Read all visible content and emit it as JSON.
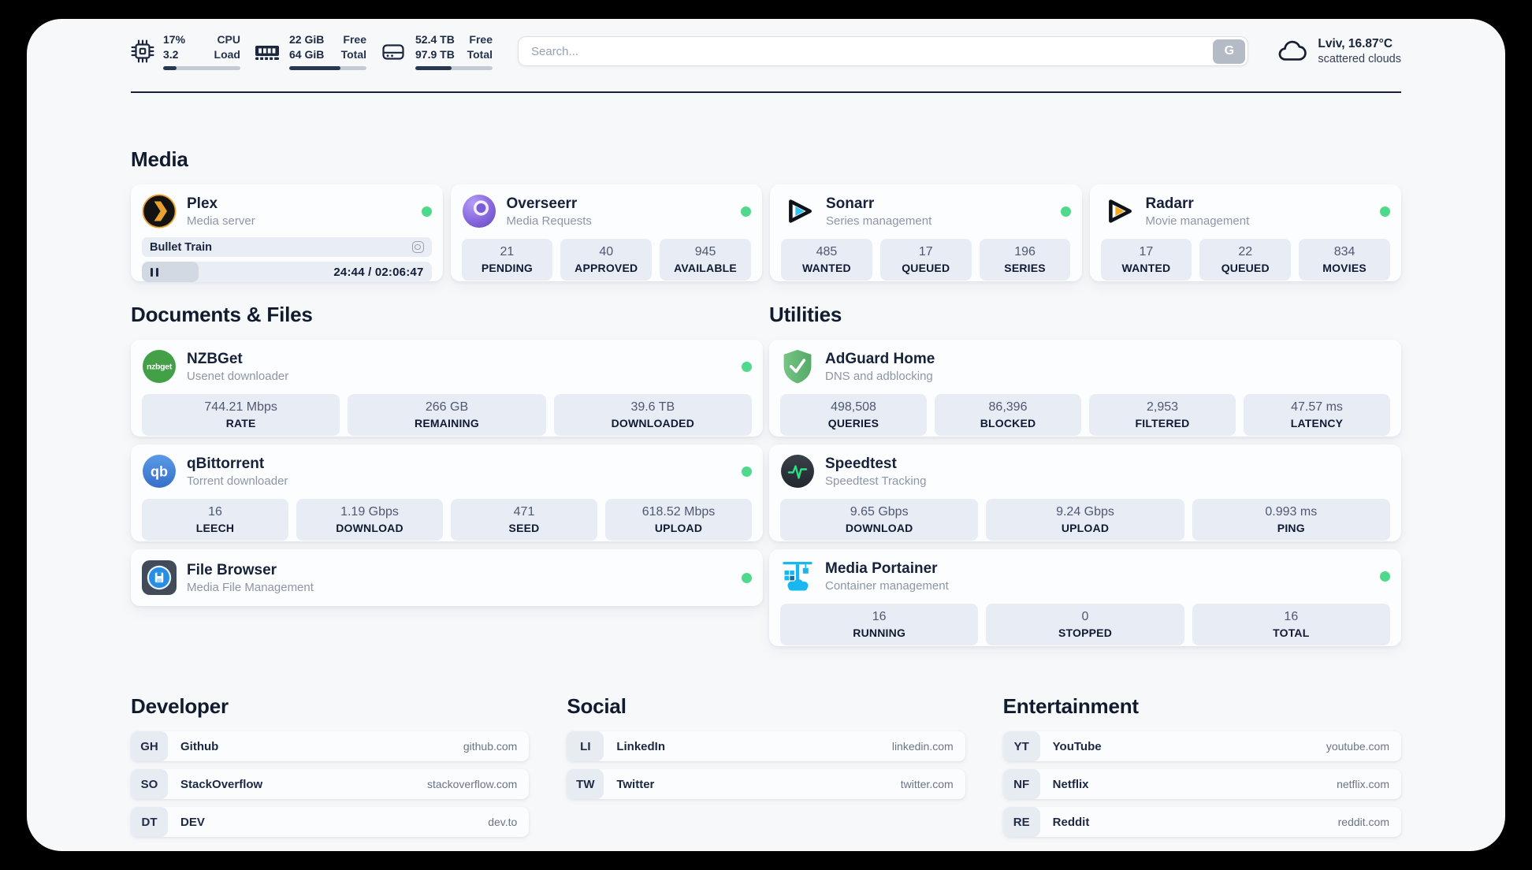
{
  "header": {
    "widgets": {
      "cpu": {
        "value_top": "17%",
        "value_bottom": "3.2",
        "label_top": "CPU",
        "label_bottom": "Load",
        "progress": "17%"
      },
      "memory": {
        "value_top": "22 GiB",
        "value_bottom": "64 GiB",
        "label_top": "Free",
        "label_bottom": "Total",
        "progress": "66%"
      },
      "disk": {
        "value_top": "52.4 TB",
        "value_bottom": "97.9 TB",
        "label_top": "Free",
        "label_bottom": "Total",
        "progress": "47%"
      }
    },
    "search": {
      "placeholder": "Search...",
      "button_label": "G",
      "value": ""
    },
    "weather": {
      "location_temp": "Lviv, 16.87°C",
      "condition": "scattered clouds"
    }
  },
  "sections": {
    "media": {
      "title": "Media"
    },
    "documents": {
      "title": "Documents & Files"
    },
    "utilities": {
      "title": "Utilities"
    },
    "developer": {
      "title": "Developer"
    },
    "social": {
      "title": "Social"
    },
    "entertainment": {
      "title": "Entertainment"
    }
  },
  "apps": {
    "plex": {
      "name": "Plex",
      "desc": "Media server",
      "online": true,
      "now_playing": "Bullet Train",
      "time": "24:44 / 02:06:47",
      "progress": "19.5%"
    },
    "overseerr": {
      "name": "Overseerr",
      "desc": "Media Requests",
      "online": true,
      "stats": [
        {
          "value": "21",
          "label": "PENDING"
        },
        {
          "value": "40",
          "label": "APPROVED"
        },
        {
          "value": "945",
          "label": "AVAILABLE"
        }
      ]
    },
    "sonarr": {
      "name": "Sonarr",
      "desc": "Series management",
      "online": true,
      "stats": [
        {
          "value": "485",
          "label": "WANTED"
        },
        {
          "value": "17",
          "label": "QUEUED"
        },
        {
          "value": "196",
          "label": "SERIES"
        }
      ]
    },
    "radarr": {
      "name": "Radarr",
      "desc": "Movie management",
      "online": true,
      "stats": [
        {
          "value": "17",
          "label": "WANTED"
        },
        {
          "value": "22",
          "label": "QUEUED"
        },
        {
          "value": "834",
          "label": "MOVIES"
        }
      ]
    },
    "nzbget": {
      "name": "NZBGet",
      "desc": "Usenet downloader",
      "online": true,
      "stats": [
        {
          "value": "744.21 Mbps",
          "label": "RATE"
        },
        {
          "value": "266 GB",
          "label": "REMAINING"
        },
        {
          "value": "39.6 TB",
          "label": "DOWNLOADED"
        }
      ]
    },
    "qbittorrent": {
      "name": "qBittorrent",
      "desc": "Torrent downloader",
      "online": true,
      "stats": [
        {
          "value": "16",
          "label": "LEECH"
        },
        {
          "value": "1.19 Gbps",
          "label": "DOWNLOAD"
        },
        {
          "value": "471",
          "label": "SEED"
        },
        {
          "value": "618.52 Mbps",
          "label": "UPLOAD"
        }
      ]
    },
    "filebrowser": {
      "name": "File Browser",
      "desc": "Media File Management",
      "online": true
    },
    "adguard": {
      "name": "AdGuard Home",
      "desc": "DNS and adblocking",
      "online": false,
      "stats": [
        {
          "value": "498,508",
          "label": "QUERIES"
        },
        {
          "value": "86,396",
          "label": "BLOCKED"
        },
        {
          "value": "2,953",
          "label": "FILTERED"
        },
        {
          "value": "47.57 ms",
          "label": "LATENCY"
        }
      ]
    },
    "speedtest": {
      "name": "Speedtest",
      "desc": "Speedtest Tracking",
      "online": false,
      "stats": [
        {
          "value": "9.65 Gbps",
          "label": "DOWNLOAD"
        },
        {
          "value": "9.24 Gbps",
          "label": "UPLOAD"
        },
        {
          "value": "0.993 ms",
          "label": "PING"
        }
      ]
    },
    "portainer": {
      "name": "Media Portainer",
      "desc": "Container management",
      "online": true,
      "stats": [
        {
          "value": "16",
          "label": "RUNNING"
        },
        {
          "value": "0",
          "label": "STOPPED"
        },
        {
          "value": "16",
          "label": "TOTAL"
        }
      ]
    }
  },
  "links": {
    "developer": [
      {
        "abbr": "GH",
        "name": "Github",
        "url": "github.com"
      },
      {
        "abbr": "SO",
        "name": "StackOverflow",
        "url": "stackoverflow.com"
      },
      {
        "abbr": "DT",
        "name": "DEV",
        "url": "dev.to"
      }
    ],
    "social": [
      {
        "abbr": "LI",
        "name": "LinkedIn",
        "url": "linkedin.com"
      },
      {
        "abbr": "TW",
        "name": "Twitter",
        "url": "twitter.com"
      }
    ],
    "entertainment": [
      {
        "abbr": "YT",
        "name": "YouTube",
        "url": "youtube.com"
      },
      {
        "abbr": "NF",
        "name": "Netflix",
        "url": "netflix.com"
      },
      {
        "abbr": "RE",
        "name": "Reddit",
        "url": "reddit.com"
      }
    ]
  },
  "colors": {
    "status_online": "#4ed98b",
    "page_bg": "#f7f8fa",
    "card_bg": "#fcfdff",
    "stat_bg": "#e8edf5",
    "progress_fill": "#2a3750",
    "plex_amber": "#e9a22d",
    "overseerr_purple": "#8b6ce0",
    "sonarr_cyan": "#31c4f3",
    "radarr_amber": "#f7a823",
    "nzbget_green": "#43a047",
    "adguard_green": "#63b56f",
    "qbittorrent_blue": "#4285d6",
    "speedtest_pulse": "#2edf84",
    "filebrowser_blue": "#268fe5",
    "portainer_blue": "#19b7f0"
  }
}
